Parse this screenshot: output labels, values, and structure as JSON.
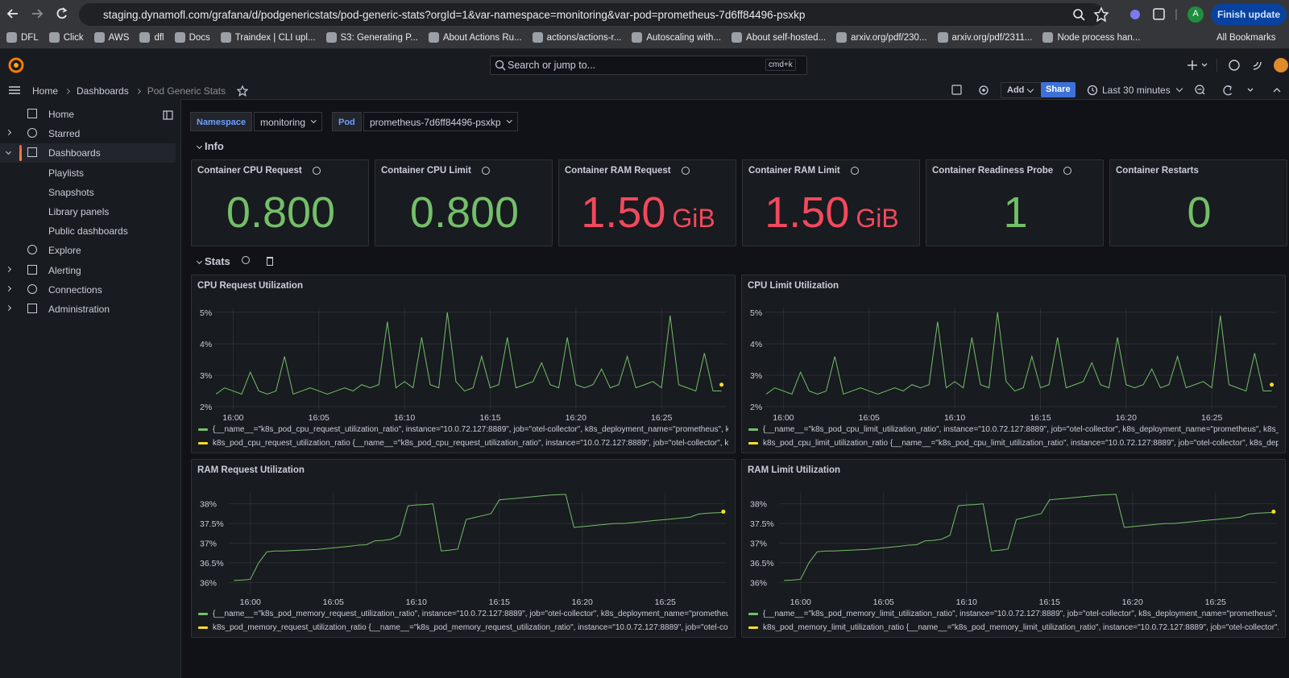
{
  "browser": {
    "url": "staging.dynamofl.com/grafana/d/podgenericstats/pod-generic-stats?orgId=1&var-namespace=monitoring&var-pod=prometheus-7d6ff84496-psxkp",
    "profile": "A",
    "update_button": "Finish update",
    "bookmarks": [
      "DFL",
      "Click",
      "AWS",
      "dfl",
      "Docs",
      "Traindex | CLI upl...",
      "S3: Generating P...",
      "About Actions Ru...",
      "actions/actions-r...",
      "Autoscaling with...",
      "About self-hosted...",
      "arxiv.org/pdf/230...",
      "arxiv.org/pdf/2311...",
      "Node process han..."
    ],
    "all_bookmarks": "All Bookmarks"
  },
  "topnav": {
    "search": "Search or jump to...",
    "shortcut": "cmd+k"
  },
  "breadcrumbs": [
    "Home",
    "Dashboards",
    "Pod Generic Stats"
  ],
  "toolbar": {
    "add": "Add",
    "share": "Share",
    "time_range": "Last 30 minutes"
  },
  "sidebar": [
    {
      "label": "Home",
      "expandable": false
    },
    {
      "label": "Starred",
      "expandable": true
    },
    {
      "label": "Dashboards",
      "expandable": true,
      "active": true,
      "children": [
        "Playlists",
        "Snapshots",
        "Library panels",
        "Public dashboards"
      ]
    },
    {
      "label": "Explore",
      "expandable": false
    },
    {
      "label": "Alerting",
      "expandable": true
    },
    {
      "label": "Connections",
      "expandable": true
    },
    {
      "label": "Administration",
      "expandable": true
    }
  ],
  "variables": [
    {
      "label": "Namespace",
      "value": "monitoring"
    },
    {
      "label": "Pod",
      "value": "prometheus-7d6ff84496-psxkp"
    }
  ],
  "rows": [
    "Info",
    "Stats"
  ],
  "stats": [
    {
      "title": "Container CPU Request",
      "info": true,
      "value": "0.800",
      "color": "#73bf69"
    },
    {
      "title": "Container CPU Limit",
      "info": true,
      "value": "0.800",
      "color": "#73bf69"
    },
    {
      "title": "Container RAM Request",
      "info": true,
      "value": "1.50",
      "unit": "GiB",
      "color": "#f2495c"
    },
    {
      "title": "Container RAM Limit",
      "info": true,
      "value": "1.50",
      "unit": "GiB",
      "color": "#f2495c"
    },
    {
      "title": "Container Readiness Probe",
      "info": true,
      "value": "1",
      "color": "#73bf69"
    },
    {
      "title": "Container Restarts",
      "info": false,
      "value": "0",
      "color": "#73bf69"
    }
  ],
  "chart_data": [
    {
      "type": "line",
      "title": "CPU Request Utilization",
      "xlim": [
        958.9,
        988.8
      ],
      "xticks": [
        {
          "value": 960,
          "label": "16:00"
        },
        {
          "value": 965,
          "label": "16:05"
        },
        {
          "value": 970,
          "label": "16:10"
        },
        {
          "value": 975,
          "label": "16:15"
        },
        {
          "value": 980,
          "label": "16:20"
        },
        {
          "value": 985,
          "label": "16:25"
        }
      ],
      "ylim": [
        1.9,
        5.15
      ],
      "yticks": [
        {
          "value": 2,
          "label": "2%"
        },
        {
          "value": 3,
          "label": "3%"
        },
        {
          "value": 4,
          "label": "4%"
        },
        {
          "value": 5,
          "label": "5%"
        }
      ],
      "grid": true,
      "x": [
        959,
        959.5,
        960,
        960.5,
        961,
        961.5,
        962,
        962.5,
        963,
        963.5,
        964,
        964.5,
        965,
        965.5,
        966,
        966.5,
        967,
        967.5,
        968,
        968.5,
        969,
        969.5,
        970,
        970.5,
        971,
        971.5,
        972,
        972.5,
        973,
        973.5,
        974,
        974.5,
        975,
        975.5,
        976,
        976.5,
        977,
        977.5,
        978,
        978.5,
        979,
        979.5,
        980,
        980.5,
        981,
        981.5,
        982,
        982.5,
        983,
        983.5,
        984,
        984.5,
        985,
        985.5,
        986,
        986.5,
        987,
        987.5,
        988,
        988.5
      ],
      "series": [
        {
          "name": "{__name__=\"k8s_pod_cpu_request_utilization_ratio\", instance=\"10.0.72.127:8889\", job=\"otel-collector\", k8s_deployment_name=\"prometheus\", k8s_r",
          "color": "#73bf69",
          "values": [
            2.4,
            2.6,
            2.5,
            2.4,
            3.1,
            2.5,
            2.4,
            2.5,
            3.6,
            2.4,
            2.5,
            2.6,
            2.5,
            2.4,
            2.5,
            2.6,
            2.5,
            2.7,
            2.6,
            2.7,
            4.7,
            2.6,
            2.8,
            2.6,
            4.2,
            2.7,
            2.6,
            5.0,
            2.8,
            2.5,
            2.6,
            3.6,
            2.6,
            2.7,
            4.2,
            2.6,
            2.7,
            2.8,
            3.4,
            2.7,
            2.6,
            4.2,
            2.7,
            2.6,
            2.7,
            3.2,
            2.6,
            2.7,
            3.6,
            2.6,
            2.7,
            2.8,
            2.6,
            4.9,
            2.7,
            2.6,
            2.5,
            3.7,
            2.5,
            2.5
          ]
        },
        {
          "name": "k8s_pod_cpu_request_utilization_ratio {__name__=\"k8s_pod_cpu_request_utilization_ratio\", instance=\"10.0.72.127:8889\", job=\"otel-collector\", k8s_d",
          "color": "#fade2a",
          "x": [
            988.5
          ],
          "values": [
            2.7
          ]
        }
      ]
    },
    {
      "type": "line",
      "title": "CPU Limit Utilization",
      "xlim": [
        958.9,
        988.8
      ],
      "xticks": [
        {
          "value": 960,
          "label": "16:00"
        },
        {
          "value": 965,
          "label": "16:05"
        },
        {
          "value": 970,
          "label": "16:10"
        },
        {
          "value": 975,
          "label": "16:15"
        },
        {
          "value": 980,
          "label": "16:20"
        },
        {
          "value": 985,
          "label": "16:25"
        }
      ],
      "ylim": [
        1.9,
        5.15
      ],
      "yticks": [
        {
          "value": 2,
          "label": "2%"
        },
        {
          "value": 3,
          "label": "3%"
        },
        {
          "value": 4,
          "label": "4%"
        },
        {
          "value": 5,
          "label": "5%"
        }
      ],
      "grid": true,
      "x": [
        959,
        959.5,
        960,
        960.5,
        961,
        961.5,
        962,
        962.5,
        963,
        963.5,
        964,
        964.5,
        965,
        965.5,
        966,
        966.5,
        967,
        967.5,
        968,
        968.5,
        969,
        969.5,
        970,
        970.5,
        971,
        971.5,
        972,
        972.5,
        973,
        973.5,
        974,
        974.5,
        975,
        975.5,
        976,
        976.5,
        977,
        977.5,
        978,
        978.5,
        979,
        979.5,
        980,
        980.5,
        981,
        981.5,
        982,
        982.5,
        983,
        983.5,
        984,
        984.5,
        985,
        985.5,
        986,
        986.5,
        987,
        987.5,
        988,
        988.5
      ],
      "series": [
        {
          "name": "{__name__=\"k8s_pod_cpu_limit_utilization_ratio\", instance=\"10.0.72.127:8889\", job=\"otel-collector\", k8s_deployment_name=\"prometheus\", k8s_nam",
          "color": "#73bf69",
          "values": [
            2.4,
            2.6,
            2.5,
            2.4,
            3.1,
            2.5,
            2.4,
            2.5,
            3.6,
            2.4,
            2.5,
            2.6,
            2.5,
            2.4,
            2.5,
            2.6,
            2.5,
            2.7,
            2.6,
            2.7,
            4.7,
            2.6,
            2.8,
            2.6,
            4.2,
            2.7,
            2.6,
            5.0,
            2.8,
            2.5,
            2.6,
            3.6,
            2.6,
            2.7,
            4.2,
            2.6,
            2.7,
            2.8,
            3.4,
            2.7,
            2.6,
            4.2,
            2.7,
            2.6,
            2.7,
            3.2,
            2.6,
            2.7,
            3.6,
            2.6,
            2.7,
            2.8,
            2.6,
            4.9,
            2.7,
            2.6,
            2.5,
            3.7,
            2.5,
            2.5
          ]
        },
        {
          "name": "k8s_pod_cpu_limit_utilization_ratio {__name__=\"k8s_pod_cpu_limit_utilization_ratio\", instance=\"10.0.72.127:8889\", job=\"otel-collector\", k8s_deploym",
          "color": "#fade2a",
          "x": [
            988.5
          ],
          "values": [
            2.7
          ]
        }
      ]
    },
    {
      "type": "line",
      "title": "RAM Request Utilization",
      "xlim": [
        958.7,
        988.7
      ],
      "xticks": [
        {
          "value": 960,
          "label": "16:00"
        },
        {
          "value": 965,
          "label": "16:05"
        },
        {
          "value": 970,
          "label": "16:10"
        },
        {
          "value": 975,
          "label": "16:15"
        },
        {
          "value": 980,
          "label": "16:20"
        },
        {
          "value": 985,
          "label": "16:25"
        }
      ],
      "ylim": [
        35.7,
        38.3
      ],
      "yticks": [
        {
          "value": 36,
          "label": "36%"
        },
        {
          "value": 36.5,
          "label": "36.5%"
        },
        {
          "value": 37,
          "label": "37%"
        },
        {
          "value": 37.5,
          "label": "37.5%"
        },
        {
          "value": 38,
          "label": "38%"
        }
      ],
      "grid": true,
      "x": [
        959,
        959.5,
        960,
        960.5,
        961,
        961.5,
        962,
        962.5,
        963,
        963.5,
        964,
        964.5,
        965,
        965.5,
        966,
        966.5,
        967,
        967.5,
        968,
        968.5,
        969,
        969.5,
        970,
        970.5,
        971,
        971.5,
        972,
        972.5,
        973,
        973.5,
        974,
        974.5,
        975,
        975.5,
        976,
        976.5,
        977,
        977.5,
        978,
        978.5,
        979,
        979.5,
        980,
        980.5,
        981,
        981.5,
        982,
        982.5,
        983,
        983.5,
        984,
        984.5,
        985,
        985.5,
        986,
        986.5,
        987,
        987.5,
        988,
        988.5
      ],
      "series": [
        {
          "name": "{__name__=\"k8s_pod_memory_request_utilization_ratio\", instance=\"10.0.72.127:8889\", job=\"otel-collector\", k8s_deployment_name=\"prometheus\", k",
          "color": "#73bf69",
          "values": [
            36.05,
            36.06,
            36.08,
            36.5,
            36.78,
            36.8,
            36.8,
            36.81,
            36.82,
            36.83,
            36.84,
            36.86,
            36.88,
            36.9,
            36.92,
            36.95,
            36.96,
            37.06,
            37.07,
            37.1,
            37.2,
            37.95,
            37.97,
            37.98,
            38.0,
            36.8,
            36.82,
            36.85,
            37.6,
            37.65,
            37.7,
            37.75,
            38.1,
            38.12,
            38.14,
            38.16,
            38.18,
            38.2,
            38.22,
            38.23,
            38.24,
            37.4,
            37.42,
            37.44,
            37.46,
            37.48,
            37.5,
            37.5,
            37.52,
            37.54,
            37.56,
            37.58,
            37.6,
            37.62,
            37.64,
            37.66,
            37.74,
            37.76,
            37.77,
            37.78
          ]
        },
        {
          "name": "k8s_pod_memory_request_utilization_ratio {__name__=\"k8s_pod_memory_request_utilization_ratio\", instance=\"10.0.72.127:8889\", job=\"otel-collecto",
          "color": "#fade2a",
          "x": [
            988.5
          ],
          "values": [
            37.8
          ]
        }
      ]
    },
    {
      "type": "line",
      "title": "RAM Limit Utilization",
      "xlim": [
        958.7,
        988.7
      ],
      "xticks": [
        {
          "value": 960,
          "label": "16:00"
        },
        {
          "value": 965,
          "label": "16:05"
        },
        {
          "value": 970,
          "label": "16:10"
        },
        {
          "value": 975,
          "label": "16:15"
        },
        {
          "value": 980,
          "label": "16:20"
        },
        {
          "value": 985,
          "label": "16:25"
        }
      ],
      "ylim": [
        35.7,
        38.3
      ],
      "yticks": [
        {
          "value": 36,
          "label": "36%"
        },
        {
          "value": 36.5,
          "label": "36.5%"
        },
        {
          "value": 37,
          "label": "37%"
        },
        {
          "value": 37.5,
          "label": "37.5%"
        },
        {
          "value": 38,
          "label": "38%"
        }
      ],
      "grid": true,
      "x": [
        959,
        959.5,
        960,
        960.5,
        961,
        961.5,
        962,
        962.5,
        963,
        963.5,
        964,
        964.5,
        965,
        965.5,
        966,
        966.5,
        967,
        967.5,
        968,
        968.5,
        969,
        969.5,
        970,
        970.5,
        971,
        971.5,
        972,
        972.5,
        973,
        973.5,
        974,
        974.5,
        975,
        975.5,
        976,
        976.5,
        977,
        977.5,
        978,
        978.5,
        979,
        979.5,
        980,
        980.5,
        981,
        981.5,
        982,
        982.5,
        983,
        983.5,
        984,
        984.5,
        985,
        985.5,
        986,
        986.5,
        987,
        987.5,
        988,
        988.5
      ],
      "series": [
        {
          "name": "{__name__=\"k8s_pod_memory_limit_utilization_ratio\", instance=\"10.0.72.127:8889\", job=\"otel-collector\", k8s_deployment_name=\"prometheus\", k8s_",
          "color": "#73bf69",
          "values": [
            36.05,
            36.06,
            36.08,
            36.5,
            36.78,
            36.8,
            36.8,
            36.81,
            36.82,
            36.83,
            36.84,
            36.86,
            36.88,
            36.9,
            36.92,
            36.95,
            36.96,
            37.06,
            37.07,
            37.1,
            37.2,
            37.95,
            37.97,
            37.98,
            38.0,
            36.8,
            36.82,
            36.85,
            37.6,
            37.65,
            37.7,
            37.75,
            38.1,
            38.12,
            38.14,
            38.16,
            38.18,
            38.2,
            38.22,
            38.23,
            38.24,
            37.4,
            37.42,
            37.44,
            37.46,
            37.48,
            37.5,
            37.5,
            37.52,
            37.54,
            37.56,
            37.58,
            37.6,
            37.62,
            37.64,
            37.66,
            37.74,
            37.76,
            37.77,
            37.78
          ]
        },
        {
          "name": "k8s_pod_memory_limit_utilization_ratio {__name__=\"k8s_pod_memory_limit_utilization_ratio\", instance=\"10.0.72.127:8889\", job=\"otel-collector\", k8s_",
          "color": "#fade2a",
          "x": [
            988.5
          ],
          "values": [
            37.8
          ]
        }
      ]
    }
  ]
}
